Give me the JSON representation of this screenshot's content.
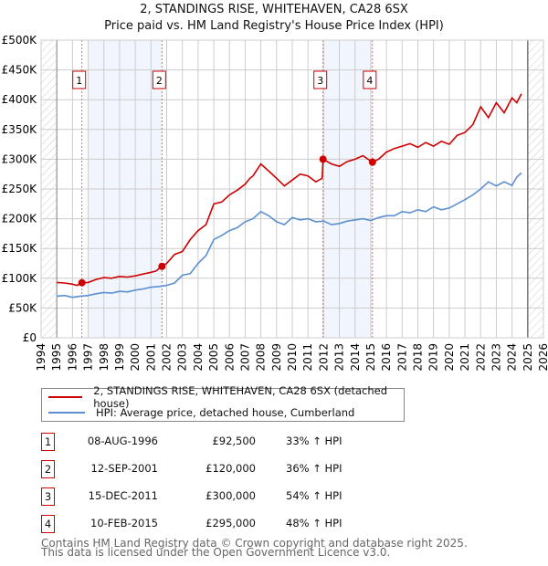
{
  "title": "2, STANDINGS RISE, WHITEHAVEN, CA28 6SX",
  "subtitle": "Price paid vs. HM Land Registry's House Price Index (HPI)",
  "chart_data": {
    "type": "line",
    "xlim": [
      1994,
      2026
    ],
    "ylim": [
      0,
      500000
    ],
    "y_ticks": [
      {
        "v": 0,
        "label": "£0"
      },
      {
        "v": 50000,
        "label": "£50K"
      },
      {
        "v": 100000,
        "label": "£100K"
      },
      {
        "v": 150000,
        "label": "£150K"
      },
      {
        "v": 200000,
        "label": "£200K"
      },
      {
        "v": 250000,
        "label": "£250K"
      },
      {
        "v": 300000,
        "label": "£300K"
      },
      {
        "v": 350000,
        "label": "£350K"
      },
      {
        "v": 400000,
        "label": "£400K"
      },
      {
        "v": 450000,
        "label": "£450K"
      },
      {
        "v": 500000,
        "label": "£500K"
      }
    ],
    "x_ticks": [
      "1994",
      "1995",
      "1996",
      "1997",
      "1998",
      "1999",
      "2000",
      "2001",
      "2002",
      "2003",
      "2004",
      "2005",
      "2006",
      "2007",
      "2008",
      "2009",
      "2010",
      "2011",
      "2012",
      "2013",
      "2014",
      "2015",
      "2016",
      "2017",
      "2018",
      "2019",
      "2020",
      "2021",
      "2022",
      "2023",
      "2024",
      "2025",
      "2026"
    ],
    "grid": true,
    "legend_placement": "below",
    "shaded_ranges": [
      [
        1997,
        2001.7
      ],
      [
        2012,
        2015.11
      ]
    ],
    "series": [
      {
        "name": "2, STANDINGS RISE, WHITEHAVEN, CA28 6SX (detached house)",
        "color": "#cc0000",
        "x": [
          1995,
          1995.5,
          1996,
          1996.3,
          1996.6,
          1997,
          1997.5,
          1998,
          1998.5,
          1999,
          1999.5,
          2000,
          2000.5,
          2001,
          2001.3,
          2001.7,
          2002,
          2002.5,
          2003,
          2003.5,
          2004,
          2004.5,
          2005,
          2005.5,
          2006,
          2006.5,
          2007,
          2007.3,
          2007.5,
          2008,
          2008.5,
          2009,
          2009.5,
          2010,
          2010.5,
          2011,
          2011.5,
          2011.9,
          2011.96,
          2012.5,
          2013,
          2013.5,
          2014,
          2014.5,
          2015.11,
          2015.5,
          2016,
          2016.5,
          2017,
          2017.5,
          2018,
          2018.5,
          2019,
          2019.5,
          2020,
          2020.5,
          2021,
          2021.5,
          2022,
          2022.5,
          2023,
          2023.5,
          2024,
          2024.3,
          2024.6
        ],
        "y": [
          93000,
          92000,
          90000,
          88000,
          92500,
          93000,
          98000,
          101000,
          100000,
          103000,
          102000,
          104000,
          107000,
          110000,
          112000,
          120000,
          125000,
          140000,
          145000,
          165000,
          180000,
          190000,
          225000,
          228000,
          240000,
          248000,
          258000,
          268000,
          272000,
          292000,
          280000,
          268000,
          255000,
          265000,
          275000,
          272000,
          262000,
          268000,
          300000,
          292000,
          288000,
          296000,
          300000,
          306000,
          295000,
          300000,
          312000,
          318000,
          322000,
          326000,
          320000,
          328000,
          322000,
          330000,
          325000,
          340000,
          345000,
          358000,
          388000,
          370000,
          395000,
          378000,
          403000,
          395000,
          410000
        ]
      },
      {
        "name": "HPI: Average price, detached house, Cumberland",
        "color": "#5b8fd0",
        "x": [
          1995,
          1995.5,
          1996,
          1996.5,
          1997,
          1997.5,
          1998,
          1998.5,
          1999,
          1999.5,
          2000,
          2000.5,
          2001,
          2001.5,
          2002,
          2002.5,
          2003,
          2003.5,
          2004,
          2004.5,
          2005,
          2005.5,
          2006,
          2006.5,
          2007,
          2007.5,
          2008,
          2008.5,
          2009,
          2009.5,
          2010,
          2010.5,
          2011,
          2011.5,
          2012,
          2012.5,
          2013,
          2013.5,
          2014,
          2014.5,
          2015,
          2015.5,
          2016,
          2016.5,
          2017,
          2017.5,
          2018,
          2018.5,
          2019,
          2019.5,
          2020,
          2020.5,
          2021,
          2021.5,
          2022,
          2022.5,
          2023,
          2023.5,
          2024,
          2024.3,
          2024.6
        ],
        "y": [
          70000,
          71000,
          68000,
          70000,
          71000,
          74000,
          76000,
          75000,
          78000,
          77000,
          80000,
          82000,
          85000,
          86000,
          88000,
          92000,
          105000,
          108000,
          125000,
          138000,
          165000,
          172000,
          180000,
          185000,
          195000,
          200000,
          212000,
          205000,
          195000,
          190000,
          202000,
          198000,
          200000,
          195000,
          196000,
          190000,
          192000,
          196000,
          198000,
          200000,
          197000,
          202000,
          205000,
          205000,
          212000,
          210000,
          215000,
          212000,
          220000,
          215000,
          218000,
          225000,
          232000,
          240000,
          250000,
          262000,
          255000,
          262000,
          256000,
          270000,
          277000
        ]
      }
    ],
    "sales": [
      {
        "n": "1",
        "x": 1996.6,
        "y": 92500,
        "date": "08-AUG-1996",
        "price": "£92,500",
        "hpi": "33% ↑ HPI"
      },
      {
        "n": "2",
        "x": 2001.7,
        "y": 120000,
        "date": "12-SEP-2001",
        "price": "£120,000",
        "hpi": "36% ↑ HPI"
      },
      {
        "n": "3",
        "x": 2011.96,
        "y": 300000,
        "date": "15-DEC-2011",
        "price": "£300,000",
        "hpi": "54% ↑ HPI"
      },
      {
        "n": "4",
        "x": 2015.11,
        "y": 295000,
        "date": "10-FEB-2015",
        "price": "£295,000",
        "hpi": "48% ↑ HPI"
      }
    ]
  },
  "legend": {
    "property": "2, STANDINGS RISE, WHITEHAVEN, CA28 6SX (detached house)",
    "hpi": "HPI: Average price, detached house, Cumberland"
  },
  "footer": {
    "line1": "Contains HM Land Registry data © Crown copyright and database right 2025.",
    "line2": "This data is licensed under the Open Government Licence v3.0."
  }
}
